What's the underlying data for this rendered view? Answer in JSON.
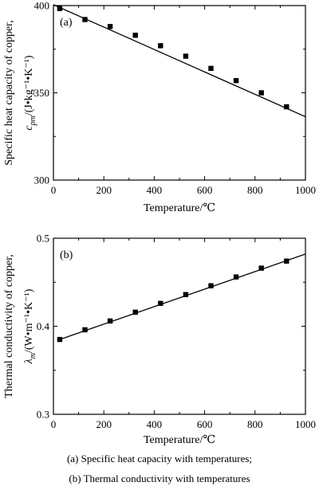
{
  "chart_data": [
    {
      "type": "line",
      "panel_label": "(a)",
      "xlabel": "Temperature/℃",
      "ylabel_line1": "Specific heat capacity of copper,",
      "ylabel_line2": "c",
      "ylabel_line2_sub": "pm",
      "ylabel_line2_unit": "/(J•kg⁻¹•K⁻¹)",
      "xlim": [
        0,
        1000
      ],
      "ylim": [
        300,
        400
      ],
      "xticks": [
        "0",
        "200",
        "400",
        "600",
        "800",
        "1000"
      ],
      "yticks": [
        "300",
        "350",
        "400"
      ],
      "ytick_values": [
        300,
        350,
        400
      ],
      "line": {
        "x": [
          0,
          1000
        ],
        "y": [
          400.5,
          336.3
        ]
      },
      "markers": {
        "x": [
          25,
          125,
          225,
          325,
          425,
          525,
          625,
          725,
          825,
          925
        ],
        "y": [
          398.3,
          392,
          388,
          383,
          377,
          371,
          364,
          357,
          350,
          342
        ]
      }
    },
    {
      "type": "line",
      "panel_label": "(b)",
      "xlabel": "Temperature/℃",
      "ylabel_line1": "Thermal conductivity of copper,",
      "ylabel_line2": "λ",
      "ylabel_line2_sub": "m",
      "ylabel_line2_unit": "/(W•m⁻¹•K⁻¹)",
      "xlim": [
        0,
        1000
      ],
      "ylim": [
        0.3,
        0.5
      ],
      "xticks": [
        "0",
        "200",
        "400",
        "600",
        "800",
        "1000"
      ],
      "yticks": [
        "0.3",
        "0.4",
        "0.5"
      ],
      "ytick_values": [
        0.3,
        0.4,
        0.5
      ],
      "line": {
        "x": [
          25,
          1000
        ],
        "y": [
          0.385,
          0.482
        ]
      },
      "markers": {
        "x": [
          25,
          125,
          225,
          325,
          425,
          525,
          625,
          725,
          825,
          925
        ],
        "y": [
          0.385,
          0.396,
          0.406,
          0.416,
          0.426,
          0.436,
          0.446,
          0.456,
          0.466,
          0.474
        ]
      }
    }
  ],
  "captions": {
    "a": "(a) Specific heat capacity with temperatures;",
    "b": "(b) Thermal conductivity with temperatures"
  }
}
